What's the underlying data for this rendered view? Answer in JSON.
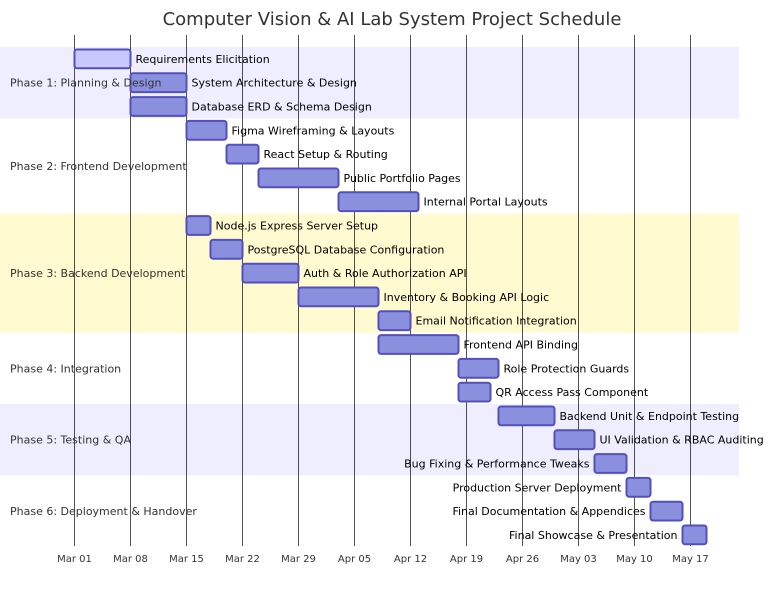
{
  "chart_data": {
    "type": "gantt",
    "title": "Computer Vision & AI Lab System Project Schedule",
    "x_ticks": [
      "Mar 01",
      "Mar 08",
      "Mar 15",
      "Mar 22",
      "Mar 29",
      "Apr 05",
      "Apr 12",
      "Apr 19",
      "Apr 26",
      "May 03",
      "May 10",
      "May 17"
    ],
    "sections": [
      {
        "name": "Phase 1: Planning & Design",
        "color": "#eeeeff",
        "tasks": [
          {
            "name": "Requirements Elicitation",
            "start": "2025-03-01",
            "end": "2025-03-08",
            "fill": "#c8c8ff"
          },
          {
            "name": "System Architecture & Design",
            "start": "2025-03-08",
            "end": "2025-03-15"
          },
          {
            "name": "Database ERD & Schema Design",
            "start": "2025-03-08",
            "end": "2025-03-15"
          }
        ]
      },
      {
        "name": "Phase 2: Frontend Development",
        "color": "#ffffff",
        "tasks": [
          {
            "name": "Figma Wireframing & Layouts",
            "start": "2025-03-15",
            "end": "2025-03-20"
          },
          {
            "name": "React Setup & Routing",
            "start": "2025-03-20",
            "end": "2025-03-24"
          },
          {
            "name": "Public Portfolio Pages",
            "start": "2025-03-24",
            "end": "2025-04-03"
          },
          {
            "name": "Internal Portal Layouts",
            "start": "2025-04-03",
            "end": "2025-04-13"
          }
        ]
      },
      {
        "name": "Phase 3: Backend Development",
        "color": "#fffad0",
        "tasks": [
          {
            "name": "Node.js Express Server Setup",
            "start": "2025-03-15",
            "end": "2025-03-18"
          },
          {
            "name": "PostgreSQL Database Configuration",
            "start": "2025-03-18",
            "end": "2025-03-22"
          },
          {
            "name": "Auth & Role Authorization API",
            "start": "2025-03-22",
            "end": "2025-03-29"
          },
          {
            "name": "Inventory & Booking API Logic",
            "start": "2025-03-29",
            "end": "2025-04-08"
          },
          {
            "name": "Email Notification Integration",
            "start": "2025-04-08",
            "end": "2025-04-12"
          }
        ]
      },
      {
        "name": "Phase 4: Integration",
        "color": "#ffffff",
        "tasks": [
          {
            "name": "Frontend API Binding",
            "start": "2025-04-08",
            "end": "2025-04-18"
          },
          {
            "name": "Role Protection Guards",
            "start": "2025-04-18",
            "end": "2025-04-23"
          },
          {
            "name": "QR Access Pass Component",
            "start": "2025-04-18",
            "end": "2025-04-22"
          }
        ]
      },
      {
        "name": "Phase 5: Testing & QA",
        "color": "#eeeeff",
        "tasks": [
          {
            "name": "Backend Unit & Endpoint Testing",
            "start": "2025-04-23",
            "end": "2025-04-30"
          },
          {
            "name": "UI Validation & RBAC Auditing",
            "start": "2025-04-30",
            "end": "2025-05-05"
          },
          {
            "name": "Bug Fixing & Performance Tweaks",
            "start": "2025-05-05",
            "end": "2025-05-09"
          }
        ]
      },
      {
        "name": "Phase 6: Deployment & Handover",
        "color": "#ffffff",
        "tasks": [
          {
            "name": "Production Server Deployment",
            "start": "2025-05-09",
            "end": "2025-05-12"
          },
          {
            "name": "Final Documentation & Appendices",
            "start": "2025-05-12",
            "end": "2025-05-16"
          },
          {
            "name": "Final Showcase & Presentation",
            "start": "2025-05-16",
            "end": "2025-05-19"
          }
        ]
      }
    ],
    "bar_color": "#8a90dd",
    "bar_border": "#534fbc",
    "grid": true
  }
}
